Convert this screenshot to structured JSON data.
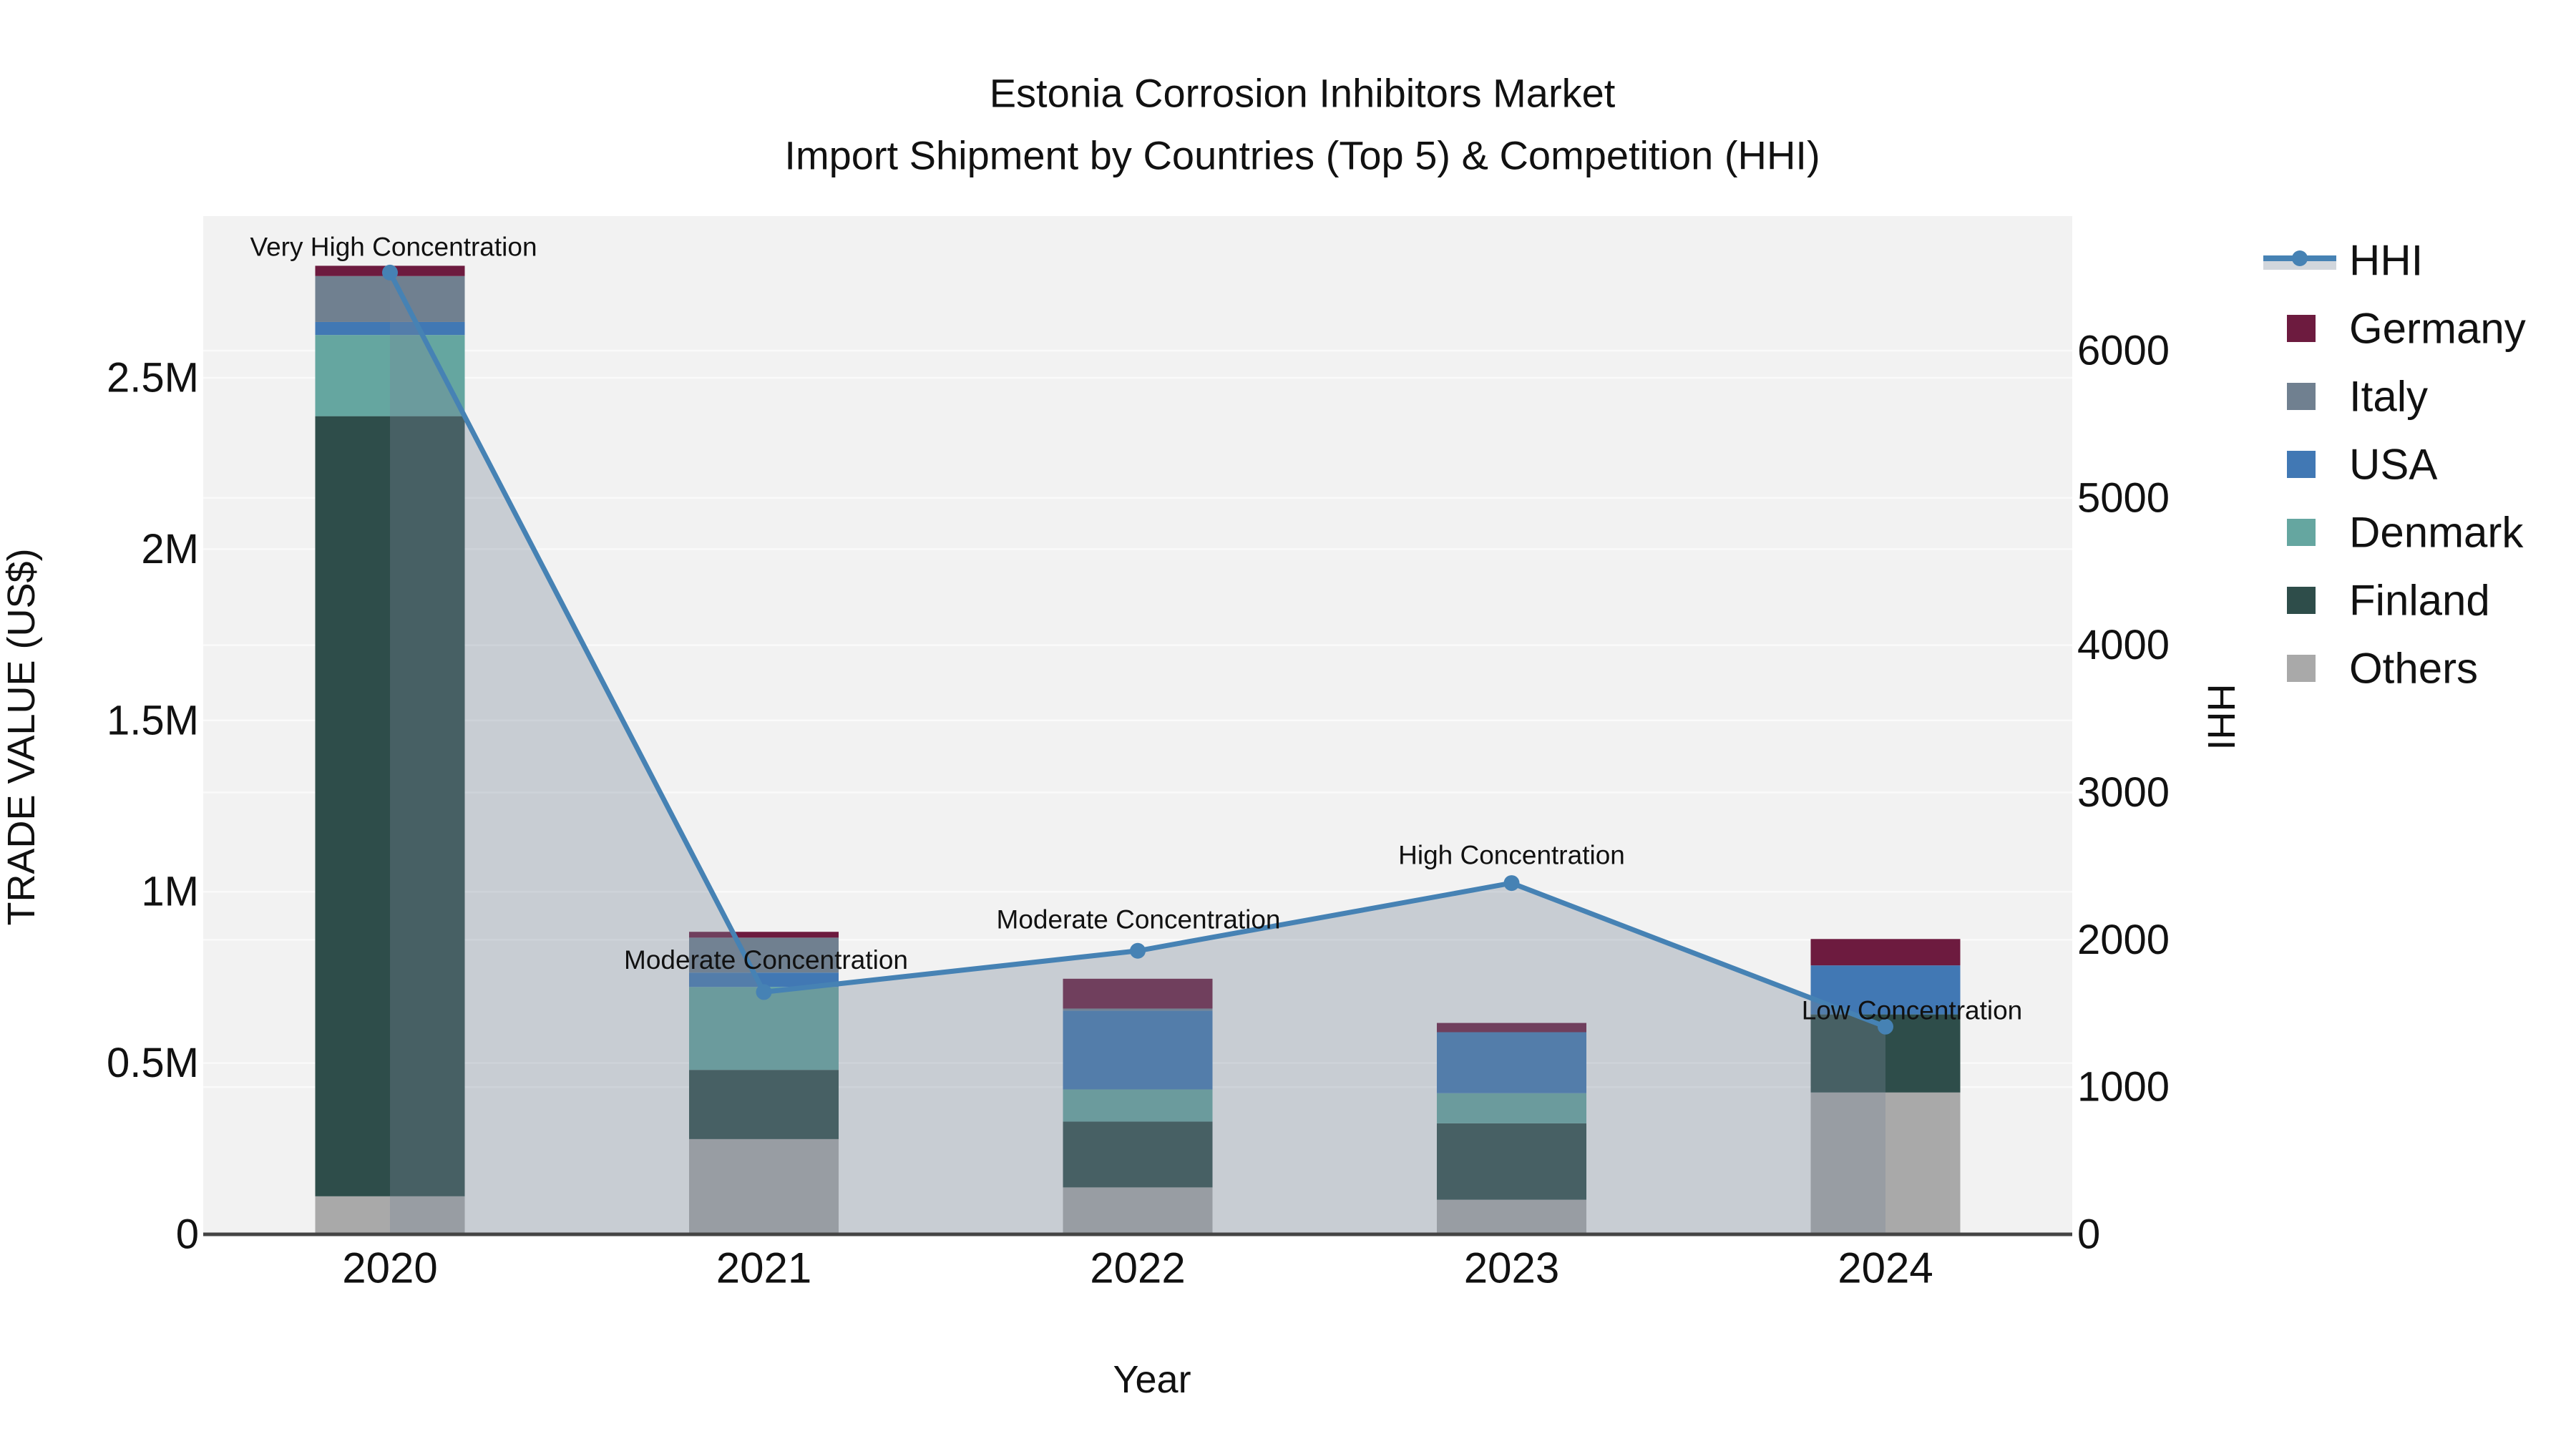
{
  "figure": {
    "title_line1": "Estonia Corrosion Inhibitors Market",
    "title_line2": "Import Shipment by Countries (Top 5) & Competition (HHI)"
  },
  "chart_data": {
    "type": "bar",
    "subtype": "stacked-bar-with-line-overlay-and-area-fill",
    "categories": [
      "2020",
      "2021",
      "2022",
      "2023",
      "2024"
    ],
    "xlabel": "Year",
    "ylabel_left": "TRADE VALUE (US$)",
    "ylabel_right": "HHI",
    "ylim_left": [
      0,
      2980000
    ],
    "ylim_right": [
      0,
      6915
    ],
    "grid": true,
    "legend_position": "right",
    "bar_series": [
      {
        "name": "Germany",
        "color": "#6d1b3f",
        "values": [
          30000,
          17000,
          87000,
          27000,
          77000
        ]
      },
      {
        "name": "Italy",
        "color": "#708090",
        "values": [
          134000,
          102000,
          6000,
          0,
          0
        ]
      },
      {
        "name": "USA",
        "color": "#4178b4",
        "values": [
          38000,
          42000,
          230000,
          178000,
          143000
        ]
      },
      {
        "name": "Denmark",
        "color": "#65a6a0",
        "values": [
          237000,
          242000,
          94000,
          88000,
          0
        ]
      },
      {
        "name": "Finland",
        "color": "#2e4d4a",
        "values": [
          2277000,
          202000,
          192000,
          223000,
          228000
        ]
      },
      {
        "name": "Others",
        "color": "#a9a9a9",
        "values": [
          111000,
          278000,
          137000,
          101000,
          414000
        ]
      }
    ],
    "bar_totals": [
      2827000,
      883000,
      746000,
      617000,
      862000
    ],
    "stack_order_bottom_to_top": [
      "Others",
      "Finland",
      "Denmark",
      "USA",
      "Italy",
      "Germany"
    ],
    "line_series": {
      "name": "HHI",
      "color": "#4682b4",
      "area_fill": "rgba(119,136,153,0.34)",
      "values": [
        6530,
        1645,
        1925,
        2385,
        1410
      ]
    },
    "annotations": [
      {
        "category": "2020",
        "label": "Very High Concentration"
      },
      {
        "category": "2021",
        "label": "Moderate Concentration"
      },
      {
        "category": "2022",
        "label": "Moderate Concentration"
      },
      {
        "category": "2023",
        "label": "High Concentration"
      },
      {
        "category": "2024",
        "label": "Low Concentration"
      }
    ],
    "left_ticks": [
      {
        "value": 0,
        "label": "0"
      },
      {
        "value": 500000,
        "label": "0.5M"
      },
      {
        "value": 1000000,
        "label": "1M"
      },
      {
        "value": 1500000,
        "label": "1.5M"
      },
      {
        "value": 2000000,
        "label": "2M"
      },
      {
        "value": 2500000,
        "label": "2.5M"
      }
    ],
    "right_ticks": [
      {
        "value": 0,
        "label": "0"
      },
      {
        "value": 1000,
        "label": "1000"
      },
      {
        "value": 2000,
        "label": "2000"
      },
      {
        "value": 3000,
        "label": "3000"
      },
      {
        "value": 4000,
        "label": "4000"
      },
      {
        "value": 5000,
        "label": "5000"
      },
      {
        "value": 6000,
        "label": "6000"
      }
    ],
    "legend_order": [
      "HHI",
      "Germany",
      "Italy",
      "USA",
      "Denmark",
      "Finland",
      "Others"
    ],
    "style": {
      "plot_bg": "#f2f2f2",
      "paper_bg": "#ffffff",
      "grid_color": "#fafafa",
      "axis_line_color": "#444444",
      "text_color": "#111111"
    }
  }
}
